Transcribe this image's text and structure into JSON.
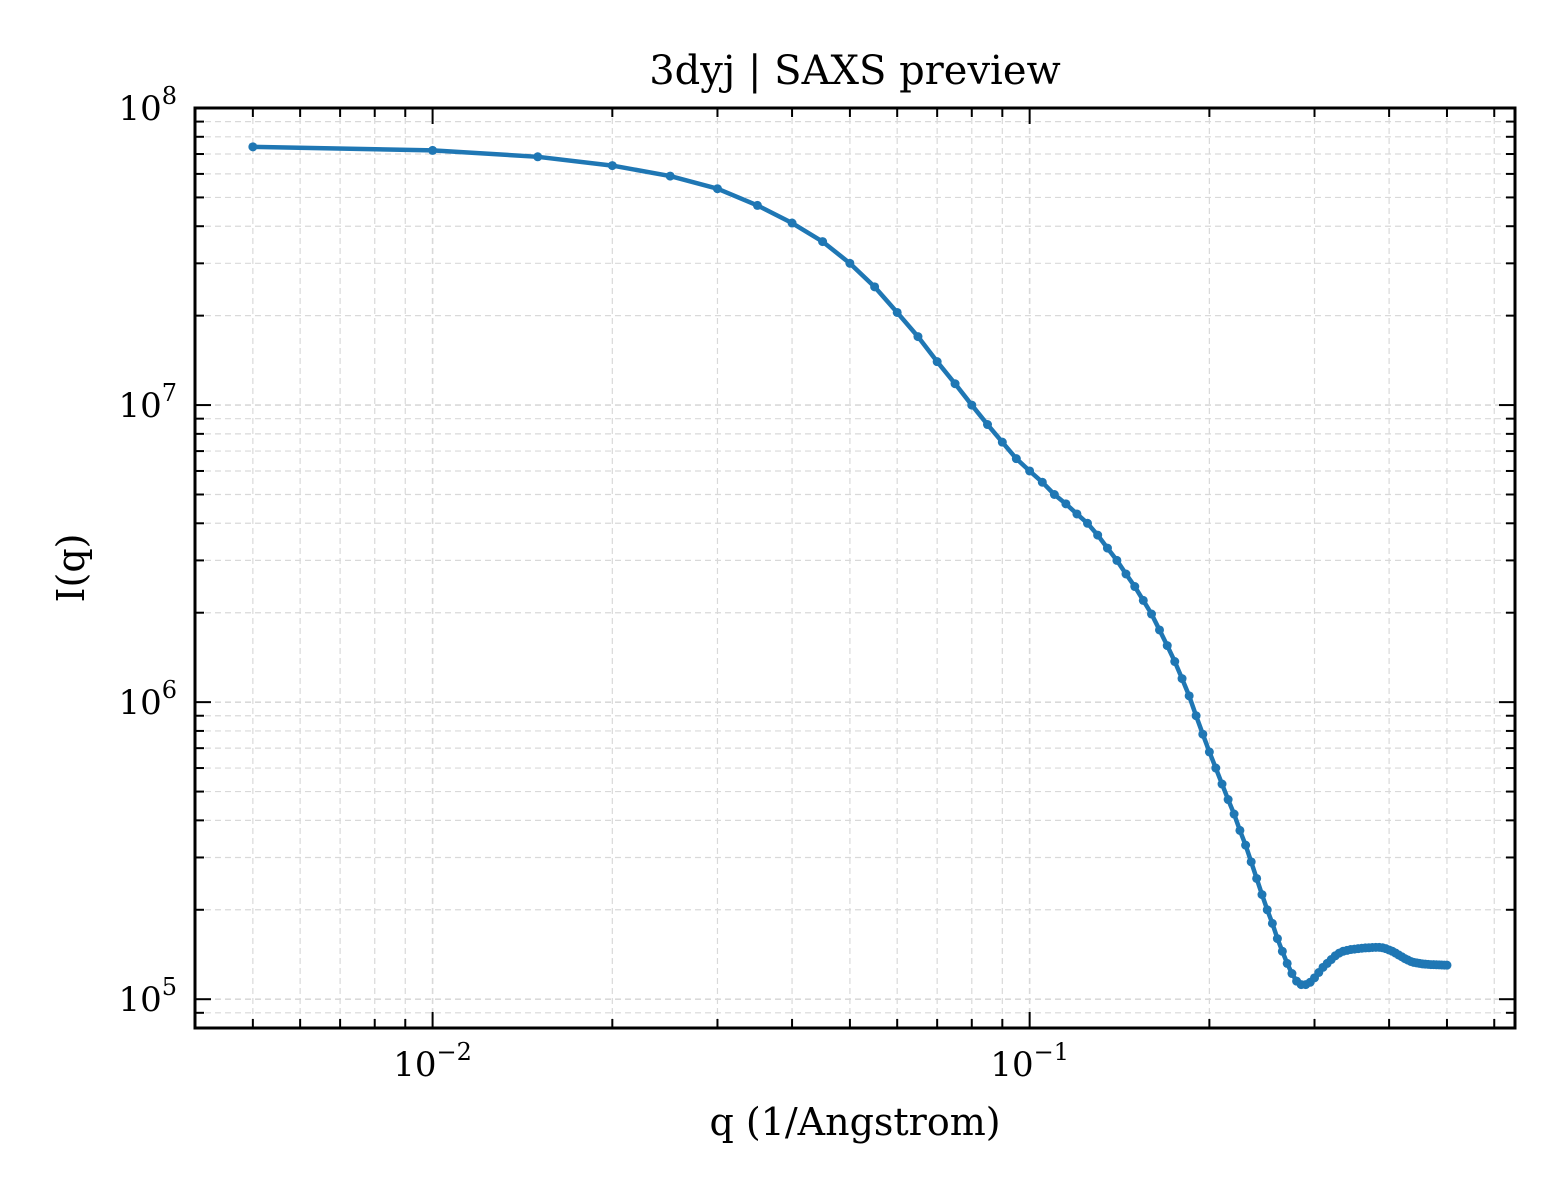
{
  "chart_data": {
    "type": "line",
    "title": "3dyj | SAXS preview",
    "xlabel": "q (1/Angstrom)",
    "ylabel": "I(q)",
    "xscale": "log",
    "yscale": "log",
    "xlim": [
      0.004,
      0.65
    ],
    "ylim": [
      80000,
      100000000
    ],
    "grid": true,
    "x_ticks": [
      {
        "base": "10",
        "exp": "−2",
        "value": 0.01
      },
      {
        "base": "10",
        "exp": "−1",
        "value": 0.1
      }
    ],
    "y_ticks": [
      {
        "base": "10",
        "exp": "5",
        "value": 100000
      },
      {
        "base": "10",
        "exp": "6",
        "value": 1000000
      },
      {
        "base": "10",
        "exp": "7",
        "value": 10000000
      },
      {
        "base": "10",
        "exp": "8",
        "value": 100000000
      }
    ],
    "colors": {
      "series": "#1f77b4",
      "grid": "#d9d9d9",
      "axes": "#000000"
    },
    "series": [
      {
        "x": [
          0.005,
          0.01,
          0.015,
          0.02,
          0.025,
          0.03,
          0.035,
          0.04,
          0.045,
          0.05,
          0.055,
          0.06,
          0.065,
          0.07,
          0.075,
          0.08,
          0.085,
          0.09,
          0.095,
          0.1,
          0.105,
          0.11,
          0.115,
          0.12,
          0.125,
          0.13,
          0.135,
          0.14,
          0.145,
          0.15,
          0.155,
          0.16,
          0.165,
          0.17,
          0.175,
          0.18,
          0.185,
          0.19,
          0.195,
          0.2,
          0.205,
          0.21,
          0.215,
          0.22,
          0.225,
          0.23,
          0.235,
          0.24,
          0.245,
          0.25,
          0.255,
          0.26,
          0.265,
          0.27,
          0.275,
          0.28,
          0.285,
          0.29,
          0.295,
          0.3,
          0.305,
          0.31,
          0.315,
          0.32,
          0.325,
          0.33,
          0.335,
          0.34,
          0.345,
          0.35,
          0.355,
          0.36,
          0.365,
          0.37,
          0.375,
          0.38,
          0.385,
          0.39,
          0.395,
          0.4,
          0.405,
          0.41,
          0.415,
          0.42,
          0.425,
          0.43,
          0.435,
          0.44,
          0.445,
          0.45,
          0.455,
          0.46,
          0.465,
          0.47,
          0.475,
          0.48,
          0.485,
          0.49,
          0.495,
          0.5
        ],
        "y": [
          74000000,
          72000000,
          68500000,
          64000000,
          59000000,
          53500000,
          47000000,
          41000000,
          35500000,
          30000000,
          25000000,
          20500000,
          17000000,
          14000000,
          11800000,
          10000000,
          8600000,
          7500000,
          6600000,
          6000000,
          5500000,
          5000000,
          4650000,
          4300000,
          4000000,
          3650000,
          3300000,
          3000000,
          2700000,
          2450000,
          2200000,
          1980000,
          1750000,
          1550000,
          1370000,
          1200000,
          1050000,
          900000,
          780000,
          680000,
          600000,
          530000,
          470000,
          420000,
          370000,
          330000,
          290000,
          255000,
          225000,
          200000,
          180000,
          160000,
          145000,
          132000,
          122000,
          115000,
          112000,
          112000,
          114000,
          118000,
          123000,
          128000,
          132000,
          136000,
          140000,
          143000,
          145000,
          146000,
          147000,
          147500,
          148000,
          148500,
          148800,
          149000,
          149300,
          149500,
          149500,
          149000,
          148000,
          146500,
          145000,
          143000,
          141000,
          139000,
          137000,
          135500,
          134000,
          133000,
          132500,
          132000,
          131500,
          131200,
          131000,
          130800,
          130700,
          130600,
          130500,
          130400,
          130300,
          130200
        ]
      }
    ]
  }
}
